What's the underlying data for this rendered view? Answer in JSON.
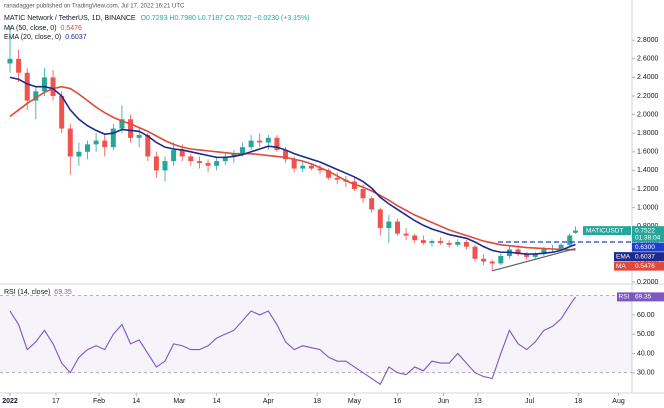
{
  "published": "ranadagger published on TradingView.com, Jul 17, 2022 16:21 UTC",
  "chart_data": {
    "type": "candlestick",
    "title": "MATIC Network / TetherUS, 1D, BINANCE",
    "ohlc_legend": "O0.7293 H0.7980 L0.7187 C0.7522 −0.0230 (+3.15%)",
    "symbol": "MATICUSDT",
    "countdown": "01:38:04",
    "up_color": "#26a69a",
    "down_color": "#ef5350",
    "x": [
      "2022-01-01",
      "2022-01-04",
      "2022-01-07",
      "2022-01-10",
      "2022-01-13",
      "2022-01-16",
      "2022-01-19",
      "2022-01-22",
      "2022-01-25",
      "2022-01-28",
      "2022-01-31",
      "2022-02-03",
      "2022-02-06",
      "2022-02-09",
      "2022-02-12",
      "2022-02-15",
      "2022-02-18",
      "2022-02-21",
      "2022-02-24",
      "2022-02-27",
      "2022-03-02",
      "2022-03-05",
      "2022-03-08",
      "2022-03-11",
      "2022-03-14",
      "2022-03-17",
      "2022-03-20",
      "2022-03-23",
      "2022-03-26",
      "2022-03-29",
      "2022-04-01",
      "2022-04-04",
      "2022-04-07",
      "2022-04-10",
      "2022-04-13",
      "2022-04-16",
      "2022-04-19",
      "2022-04-22",
      "2022-04-25",
      "2022-04-28",
      "2022-05-01",
      "2022-05-04",
      "2022-05-07",
      "2022-05-10",
      "2022-05-13",
      "2022-05-16",
      "2022-05-19",
      "2022-05-22",
      "2022-05-25",
      "2022-05-28",
      "2022-05-31",
      "2022-06-03",
      "2022-06-06",
      "2022-06-09",
      "2022-06-12",
      "2022-06-15",
      "2022-06-18",
      "2022-06-21",
      "2022-06-24",
      "2022-06-27",
      "2022-06-30",
      "2022-07-03",
      "2022-07-06",
      "2022-07-09",
      "2022-07-12",
      "2022-07-15",
      "2022-07-17"
    ],
    "open": [
      2.55,
      2.6,
      2.45,
      2.15,
      2.25,
      2.4,
      2.2,
      1.85,
      1.55,
      1.6,
      1.68,
      1.72,
      1.65,
      1.85,
      1.95,
      1.75,
      1.78,
      1.55,
      1.4,
      1.5,
      1.62,
      1.55,
      1.5,
      1.48,
      1.45,
      1.5,
      1.55,
      1.58,
      1.65,
      1.72,
      1.7,
      1.75,
      1.62,
      1.52,
      1.42,
      1.45,
      1.42,
      1.4,
      1.32,
      1.3,
      1.28,
      1.2,
      1.1,
      0.98,
      0.78,
      0.85,
      0.72,
      0.7,
      0.65,
      0.62,
      0.64,
      0.62,
      0.6,
      0.63,
      0.58,
      0.45,
      0.42,
      0.4,
      0.48,
      0.55,
      0.5,
      0.47,
      0.5,
      0.55,
      0.56,
      0.6,
      0.7293
    ],
    "high": [
      2.95,
      2.7,
      2.5,
      2.3,
      2.5,
      2.48,
      2.25,
      1.9,
      1.7,
      1.72,
      1.8,
      1.78,
      1.9,
      2.1,
      2.0,
      1.85,
      1.8,
      1.6,
      1.55,
      1.7,
      1.68,
      1.58,
      1.55,
      1.52,
      1.55,
      1.58,
      1.62,
      1.7,
      1.78,
      1.8,
      1.78,
      1.78,
      1.65,
      1.55,
      1.5,
      1.48,
      1.46,
      1.42,
      1.38,
      1.34,
      1.32,
      1.25,
      1.12,
      1.0,
      0.92,
      0.88,
      0.78,
      0.72,
      0.7,
      0.66,
      0.68,
      0.65,
      0.66,
      0.65,
      0.6,
      0.5,
      0.44,
      0.5,
      0.58,
      0.6,
      0.52,
      0.52,
      0.58,
      0.6,
      0.62,
      0.72,
      0.798
    ],
    "low": [
      2.45,
      2.35,
      2.05,
      1.95,
      2.2,
      2.15,
      1.8,
      1.35,
      1.45,
      1.52,
      1.6,
      1.55,
      1.62,
      1.8,
      1.7,
      1.65,
      1.5,
      1.32,
      1.28,
      1.45,
      1.5,
      1.45,
      1.42,
      1.38,
      1.4,
      1.46,
      1.48,
      1.55,
      1.62,
      1.65,
      1.62,
      1.6,
      1.48,
      1.38,
      1.38,
      1.4,
      1.36,
      1.3,
      1.25,
      1.22,
      1.18,
      1.05,
      0.95,
      0.7,
      0.62,
      0.7,
      0.65,
      0.62,
      0.6,
      0.58,
      0.6,
      0.57,
      0.58,
      0.55,
      0.42,
      0.38,
      0.32,
      0.38,
      0.45,
      0.48,
      0.44,
      0.45,
      0.48,
      0.52,
      0.53,
      0.58,
      0.7187
    ],
    "close": [
      2.6,
      2.45,
      2.15,
      2.25,
      2.4,
      2.2,
      1.85,
      1.55,
      1.6,
      1.68,
      1.72,
      1.65,
      1.85,
      1.95,
      1.75,
      1.78,
      1.55,
      1.4,
      1.5,
      1.62,
      1.55,
      1.5,
      1.48,
      1.45,
      1.5,
      1.55,
      1.58,
      1.65,
      1.72,
      1.7,
      1.75,
      1.62,
      1.52,
      1.42,
      1.45,
      1.42,
      1.4,
      1.32,
      1.3,
      1.28,
      1.2,
      1.1,
      0.98,
      0.78,
      0.85,
      0.72,
      0.7,
      0.65,
      0.62,
      0.64,
      0.62,
      0.6,
      0.63,
      0.58,
      0.45,
      0.42,
      0.4,
      0.48,
      0.55,
      0.5,
      0.47,
      0.5,
      0.55,
      0.56,
      0.6,
      0.7,
      0.7522
    ],
    "series": [
      {
        "name": "MA (50, close, 0)",
        "tag": "MA",
        "color": "#e04a3c",
        "values": [
          1.98,
          2.05,
          2.12,
          2.18,
          2.24,
          2.28,
          2.3,
          2.28,
          2.22,
          2.15,
          2.08,
          2.02,
          1.97,
          1.93,
          1.9,
          1.86,
          1.82,
          1.77,
          1.72,
          1.68,
          1.65,
          1.63,
          1.62,
          1.61,
          1.6,
          1.59,
          1.58,
          1.58,
          1.58,
          1.57,
          1.56,
          1.55,
          1.54,
          1.52,
          1.5,
          1.47,
          1.43,
          1.39,
          1.34,
          1.29,
          1.25,
          1.22,
          1.18,
          1.13,
          1.08,
          1.02,
          0.97,
          0.92,
          0.88,
          0.84,
          0.8,
          0.76,
          0.73,
          0.7,
          0.67,
          0.64,
          0.62,
          0.6,
          0.59,
          0.58,
          0.57,
          0.565,
          0.56,
          0.555,
          0.55,
          0.548,
          0.5476
        ]
      },
      {
        "name": "EMA (20, close, 0)",
        "tag": "EMA",
        "color": "#1c2a8c",
        "values": [
          2.4,
          2.38,
          2.33,
          2.3,
          2.3,
          2.28,
          2.2,
          2.05,
          1.95,
          1.88,
          1.83,
          1.79,
          1.8,
          1.84,
          1.83,
          1.82,
          1.77,
          1.7,
          1.65,
          1.63,
          1.62,
          1.6,
          1.58,
          1.56,
          1.54,
          1.54,
          1.55,
          1.57,
          1.6,
          1.63,
          1.66,
          1.65,
          1.62,
          1.58,
          1.55,
          1.52,
          1.49,
          1.45,
          1.41,
          1.37,
          1.33,
          1.28,
          1.21,
          1.11,
          1.04,
          0.98,
          0.92,
          0.86,
          0.81,
          0.77,
          0.74,
          0.71,
          0.69,
          0.67,
          0.63,
          0.58,
          0.54,
          0.52,
          0.52,
          0.51,
          0.5,
          0.5,
          0.51,
          0.52,
          0.54,
          0.58,
          0.6037
        ]
      }
    ],
    "resistance": {
      "value": 0.63,
      "label": "0.6300",
      "color": "#1f3fd1"
    },
    "support_line": {
      "x": [
        "2022-06-18",
        "2022-07-17"
      ],
      "values": [
        0.32,
        0.56
      ],
      "color": "#5d606b"
    },
    "xlim": [
      "2022-01-01",
      "2022-08-05"
    ],
    "xticks": [
      {
        "value": "2022-01-01",
        "label": "2022"
      },
      {
        "value": "2022-01-17",
        "label": "17"
      },
      {
        "value": "2022-02-01",
        "label": "Feb"
      },
      {
        "value": "2022-02-14",
        "label": "14"
      },
      {
        "value": "2022-03-01",
        "label": "Mar"
      },
      {
        "value": "2022-03-14",
        "label": "14"
      },
      {
        "value": "2022-04-01",
        "label": "Apr"
      },
      {
        "value": "2022-04-18",
        "label": "18"
      },
      {
        "value": "2022-05-01",
        "label": "May"
      },
      {
        "value": "2022-05-16",
        "label": "16"
      },
      {
        "value": "2022-06-01",
        "label": "Jun"
      },
      {
        "value": "2022-06-13",
        "label": "13"
      },
      {
        "value": "2022-07-01",
        "label": "Jul"
      },
      {
        "value": "2022-07-18",
        "label": "18"
      },
      {
        "value": "2022-08-01",
        "label": "Aug"
      }
    ],
    "ylim": [
      0.2,
      3.2
    ],
    "yticks": [
      {
        "value": 2.8,
        "label": "2.8000"
      },
      {
        "value": 2.6,
        "label": "2.6000"
      },
      {
        "value": 2.4,
        "label": "2.4000"
      },
      {
        "value": 2.2,
        "label": "2.2000"
      },
      {
        "value": 2.0,
        "label": "2.0000"
      },
      {
        "value": 1.8,
        "label": "1.8000"
      },
      {
        "value": 1.6,
        "label": "1.6000"
      },
      {
        "value": 1.4,
        "label": "1.4000"
      },
      {
        "value": 1.2,
        "label": "1.2000"
      },
      {
        "value": 1.0,
        "label": "1.0000"
      },
      {
        "value": 0.8,
        "label": "0.8000"
      },
      {
        "value": 0.6,
        "label": "0.6000"
      },
      {
        "value": 0.4,
        "label": "0.4000"
      },
      {
        "value": 0.2,
        "label": "0.2000"
      }
    ],
    "grid": false,
    "rsi": {
      "title": "RSI (14, close)",
      "tag": "RSI",
      "color": "#7e57c2",
      "values": [
        62,
        55,
        42,
        46,
        52,
        45,
        35,
        30,
        38,
        42,
        44,
        42,
        50,
        55,
        45,
        47,
        40,
        33,
        36,
        45,
        44,
        42,
        42,
        44,
        48,
        50,
        52,
        57,
        62,
        60,
        62,
        55,
        46,
        42,
        44,
        43,
        42,
        38,
        36,
        36,
        33,
        30,
        27,
        24,
        33,
        30,
        29,
        33,
        31,
        36,
        35,
        35,
        40,
        35,
        30,
        28,
        27,
        40,
        52,
        45,
        42,
        46,
        52,
        54,
        58,
        65,
        69.35
      ],
      "ylim": [
        20,
        75
      ],
      "yticks": [
        {
          "value": 60,
          "label": "60.00"
        },
        {
          "value": 50,
          "label": "50.00"
        },
        {
          "value": 40,
          "label": "40.00"
        },
        {
          "value": 30,
          "label": "30.00"
        }
      ],
      "bands": [
        30,
        70
      ]
    }
  }
}
